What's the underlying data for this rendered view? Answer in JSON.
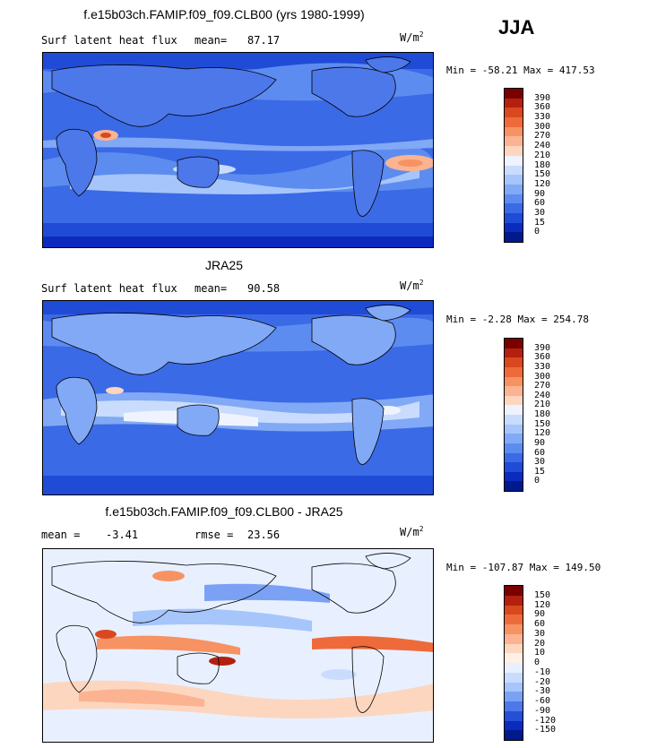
{
  "season": "JJA",
  "panels": [
    {
      "title": "f.e15b03ch.FAMIP.f09_f09.CLB00 (yrs 1980-1999)",
      "left_label": "Surf latent heat flux",
      "stat_label": "mean=",
      "stat_value": "87.17",
      "units": "W/m",
      "units_sup": "2",
      "minmax": "Min = -58.21 Max = 417.53",
      "levels": [
        "390",
        "360",
        "330",
        "300",
        "270",
        "240",
        "210",
        "180",
        "150",
        "120",
        "90",
        "60",
        "30",
        "15",
        "0"
      ],
      "colors": [
        "#7a0000",
        "#b3200d",
        "#d9481f",
        "#ee6a3b",
        "#f79263",
        "#fbb391",
        "#fdd6bf",
        "#eef3ff",
        "#c9dcfd",
        "#a6c5fb",
        "#82a9f5",
        "#5d8cf0",
        "#3b6ae6",
        "#1f4bd6",
        "#0b2bbf",
        "#001a8c"
      ]
    },
    {
      "title": "JRA25",
      "left_label": "Surf latent heat flux",
      "stat_label": "mean=",
      "stat_value": "90.58",
      "units": "W/m",
      "units_sup": "2",
      "minmax": "Min = -2.28 Max = 254.78",
      "levels": [
        "390",
        "360",
        "330",
        "300",
        "270",
        "240",
        "210",
        "180",
        "150",
        "120",
        "90",
        "60",
        "30",
        "15",
        "0"
      ],
      "colors": [
        "#7a0000",
        "#b3200d",
        "#d9481f",
        "#ee6a3b",
        "#f79263",
        "#fbb391",
        "#fdd6bf",
        "#eef3ff",
        "#c9dcfd",
        "#a6c5fb",
        "#82a9f5",
        "#5d8cf0",
        "#3b6ae6",
        "#1f4bd6",
        "#0b2bbf",
        "#001a8c"
      ]
    },
    {
      "title": "f.e15b03ch.FAMIP.f09_f09.CLB00 - JRA25",
      "left_label": "mean =",
      "left_value": "-3.41",
      "stat_label": "rmse =",
      "stat_value": "23.56",
      "units": "W/m",
      "units_sup": "2",
      "minmax": "Min = -107.87 Max = 149.50",
      "levels": [
        "150",
        "120",
        "90",
        "60",
        "30",
        "20",
        "10",
        "0",
        "-10",
        "-20",
        "-30",
        "-60",
        "-90",
        "-120",
        "-150"
      ],
      "colors": [
        "#7a0000",
        "#b3200d",
        "#d9481f",
        "#ee6a3b",
        "#f79263",
        "#fbb391",
        "#fdd6bf",
        "#fff0e6",
        "#e8f0ff",
        "#c9dcfd",
        "#a6c5fb",
        "#7aa1f3",
        "#4d78ea",
        "#2350d6",
        "#0b2bbf",
        "#001a8c"
      ]
    }
  ]
}
